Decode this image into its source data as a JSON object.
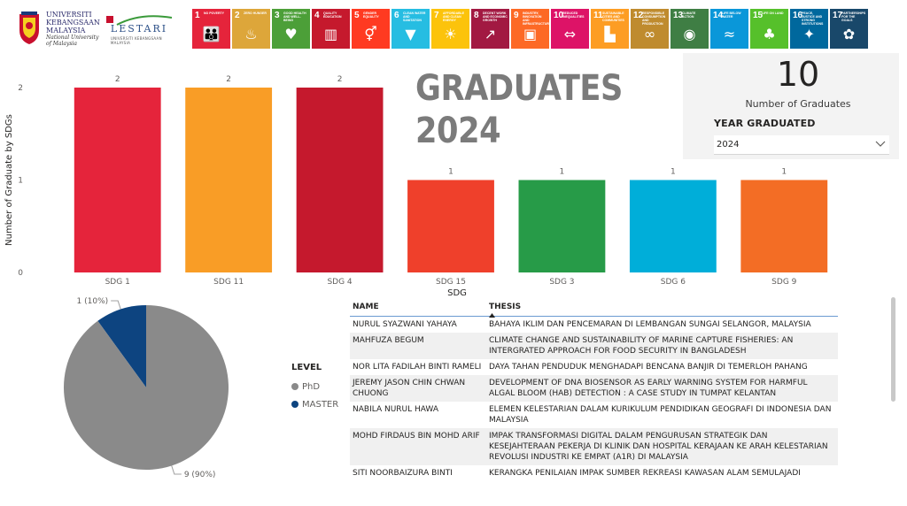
{
  "header": {
    "ukm_logo": {
      "lines": [
        "UNIVERSITI",
        "KEBANGSAAN",
        "MALAYSIA"
      ],
      "sublines": [
        "National University",
        "of Malaysia"
      ]
    },
    "lestari_logo": {
      "word": "LESTARI",
      "sub": "UNIVERSITI KEBANGSAAN MALAYSIA"
    },
    "sdg_tiles": [
      {
        "num": "1",
        "label": "NO POVERTY",
        "color": "#e5243b",
        "icon": "family-icon"
      },
      {
        "num": "2",
        "label": "ZERO HUNGER",
        "color": "#dda63a",
        "icon": "bowl-icon"
      },
      {
        "num": "3",
        "label": "GOOD HEALTH AND WELL-BEING",
        "color": "#4c9f38",
        "icon": "heartbeat-icon"
      },
      {
        "num": "4",
        "label": "QUALITY EDUCATION",
        "color": "#c5192d",
        "icon": "book-icon"
      },
      {
        "num": "5",
        "label": "GENDER EQUALITY",
        "color": "#ff3a21",
        "icon": "gender-icon"
      },
      {
        "num": "6",
        "label": "CLEAN WATER AND SANITATION",
        "color": "#26bde2",
        "icon": "water-icon"
      },
      {
        "num": "7",
        "label": "AFFORDABLE AND CLEAN ENERGY",
        "color": "#fcc30b",
        "icon": "sun-icon"
      },
      {
        "num": "8",
        "label": "DECENT WORK AND ECONOMIC GROWTH",
        "color": "#a21942",
        "icon": "growth-chart-icon"
      },
      {
        "num": "9",
        "label": "INDUSTRY, INNOVATION AND INFRASTRUCTURE",
        "color": "#fd6925",
        "icon": "cubes-icon"
      },
      {
        "num": "10",
        "label": "REDUCED INEQUALITIES",
        "color": "#dd1367",
        "icon": "equal-icon"
      },
      {
        "num": "11",
        "label": "SUSTAINABLE CITIES AND COMMUNITIES",
        "color": "#fd9d24",
        "icon": "city-icon"
      },
      {
        "num": "12",
        "label": "RESPONSIBLE CONSUMPTION AND PRODUCTION",
        "color": "#bf8b2e",
        "icon": "infinity-icon"
      },
      {
        "num": "13",
        "label": "CLIMATE ACTION",
        "color": "#3f7e44",
        "icon": "eye-globe-icon"
      },
      {
        "num": "14",
        "label": "LIFE BELOW WATER",
        "color": "#0a97d9",
        "icon": "fish-icon"
      },
      {
        "num": "15",
        "label": "LIFE ON LAND",
        "color": "#56c02b",
        "icon": "tree-icon"
      },
      {
        "num": "16",
        "label": "PEACE, JUSTICE AND STRONG INSTITUTIONS",
        "color": "#00689d",
        "icon": "dove-icon"
      },
      {
        "num": "17",
        "label": "PARTNERSHIPS FOR THE GOALS",
        "color": "#19486a",
        "icon": "rings-icon"
      }
    ]
  },
  "title": {
    "line1": "GRADUATES",
    "line2": "2024"
  },
  "kpi": {
    "value": "10",
    "label": "Number of Graduates"
  },
  "slicer": {
    "title": "YEAR GRADUATED",
    "value": "2024"
  },
  "chart_data": [
    {
      "type": "bar",
      "xlabel": "SDG",
      "ylabel": "Number of Graduate by SDGs",
      "ylim": [
        0,
        2
      ],
      "yticks": [
        "0",
        "1",
        "2"
      ],
      "categories": [
        "SDG 1",
        "SDG 11",
        "SDG 4",
        "SDG 15",
        "SDG 3",
        "SDG 6",
        "SDG 9"
      ],
      "values": [
        2,
        2,
        2,
        1,
        1,
        1,
        1
      ],
      "colors": [
        "#e5243b",
        "#f99d26",
        "#c5192d",
        "#ef402b",
        "#279b48",
        "#00aed9",
        "#f36d25"
      ],
      "data_labels": [
        "2",
        "2",
        "2",
        "1",
        "1",
        "1",
        "1"
      ]
    },
    {
      "type": "pie",
      "legend_title": "LEVEL",
      "slices": [
        {
          "name": "PhD",
          "value": 9,
          "percent": 90,
          "label": "9 (90%)",
          "color": "#8a8a8a"
        },
        {
          "name": "MASTER",
          "value": 1,
          "percent": 10,
          "label": "1 (10%)",
          "color": "#0d4480"
        }
      ]
    }
  ],
  "table": {
    "headers": {
      "name": "NAME",
      "thesis": "THESIS"
    },
    "rows": [
      {
        "name": "NURUL SYAZWANI YAHAYA",
        "thesis": "BAHAYA IKLIM DAN PENCEMARAN DI LEMBANGAN SUNGAI SELANGOR, MALAYSIA"
      },
      {
        "name": "MAHFUZA BEGUM",
        "thesis": "CLIMATE CHANGE AND SUSTAINABILITY OF MARINE CAPTURE FISHERIES: AN INTERGRATED APPROACH FOR FOOD SECURITY IN BANGLADESH"
      },
      {
        "name": "NOR LITA FADILAH BINTI RAMELI",
        "thesis": "DAYA TAHAN PENDUDUK MENGHADAPI BENCANA BANJIR DI TEMERLOH PAHANG"
      },
      {
        "name": "JEREMY JASON CHIN CHWAN CHUONG",
        "thesis": "DEVELOPMENT OF DNA BIOSENSOR AS EARLY WARNING SYSTEM FOR HARMFUL ALGAL BLOOM (HAB) DETECTION : A CASE STUDY IN TUMPAT KELANTAN"
      },
      {
        "name": "NABILA NURUL HAWA",
        "thesis": "ELEMEN KELESTARIAN DALAM KURIKULUM PENDIDIKAN GEOGRAFI DI INDONESIA DAN MALAYSIA"
      },
      {
        "name": "MOHD FIRDAUS BIN MOHD ARIF",
        "thesis": "IMPAK TRANSFORMASI DIGITAL DALAM PENGURUSAN STRATEGIK DAN KESEJAHTERAAN PEKERJA DI KLINIK DAN HOSPITAL KERAJAAN KE ARAH KELESTARIAN REVOLUSI INDUSTRI KE EMPAT (A1R) DI MALAYSIA"
      },
      {
        "name": "SITI NOORBAIZURA BINTI",
        "thesis": "KERANGKA PENILAIAN IMPAK SUMBER REKREASI KAWASAN ALAM SEMULAJADI"
      }
    ]
  }
}
